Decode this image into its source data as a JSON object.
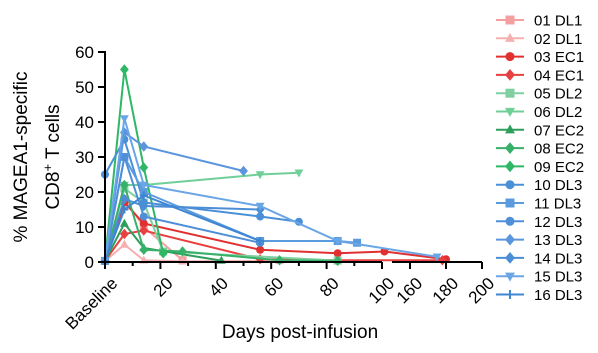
{
  "chart_data": {
    "type": "line",
    "xlabel": "Days post-infusion",
    "ylabel_line1": "% MAGEA1-specific",
    "ylabel_line2_pre": "CD8",
    "ylabel_line2_sup": "+",
    "ylabel_line2_post": " T cells",
    "ylim": [
      0,
      60
    ],
    "y_ticks": [
      0,
      10,
      20,
      30,
      40,
      50,
      60
    ],
    "x_break": {
      "left_segment": [
        0,
        100
      ],
      "right_segment": [
        150,
        200
      ]
    },
    "x_tick_labels": [
      "Baseline",
      "20",
      "40",
      "60",
      "80",
      "100",
      "160",
      "180",
      "200"
    ],
    "legend_placement": "right",
    "series": [
      {
        "name": "01 DL1",
        "color": "#f4a0a0",
        "marker": "square",
        "points": [
          [
            0,
            0.3
          ],
          [
            7,
            18
          ],
          [
            14,
            10
          ],
          [
            28,
            0.5
          ]
        ]
      },
      {
        "name": "02 DL1",
        "color": "#f7b0b0",
        "marker": "triangle-up",
        "points": [
          [
            0,
            0.2
          ],
          [
            7,
            5
          ],
          [
            14,
            0.5
          ],
          [
            28,
            0.2
          ],
          [
            63,
            0.3
          ]
        ]
      },
      {
        "name": "03 EC1",
        "color": "#e03030",
        "marker": "circle",
        "points": [
          [
            0,
            0.3
          ],
          [
            7,
            17
          ],
          [
            14,
            11
          ],
          [
            56,
            3.5
          ],
          [
            84,
            2.5
          ],
          [
            112,
            3
          ],
          [
            180,
            0.8
          ]
        ]
      },
      {
        "name": "04 EC1",
        "color": "#e84040",
        "marker": "diamond",
        "points": [
          [
            0,
            0.3
          ],
          [
            7,
            8
          ],
          [
            14,
            9
          ],
          [
            56,
            0.8
          ],
          [
            84,
            0.5
          ],
          [
            178,
            0.5
          ]
        ]
      },
      {
        "name": "05 DL2",
        "color": "#7fd0a0",
        "marker": "square",
        "points": [
          [
            0,
            0.3
          ],
          [
            7,
            21
          ],
          [
            14,
            17
          ],
          [
            21,
            3
          ],
          [
            84,
            0.4
          ]
        ]
      },
      {
        "name": "06 DL2",
        "color": "#6fcf97",
        "marker": "triangle-down",
        "points": [
          [
            0,
            0.3
          ],
          [
            7,
            22
          ],
          [
            14,
            22
          ],
          [
            56,
            25
          ],
          [
            70,
            25.5
          ]
        ]
      },
      {
        "name": "07 EC2",
        "color": "#2e9e5a",
        "marker": "triangle-up",
        "points": [
          [
            0,
            0.3
          ],
          [
            7,
            11
          ],
          [
            14,
            4
          ],
          [
            42,
            0.4
          ]
        ]
      },
      {
        "name": "08 EC2",
        "color": "#37b06a",
        "marker": "diamond",
        "points": [
          [
            0,
            0.3
          ],
          [
            7,
            22
          ],
          [
            14,
            3.5
          ],
          [
            28,
            3
          ],
          [
            63,
            0.5
          ],
          [
            84,
            0.3
          ]
        ]
      },
      {
        "name": "09 EC2",
        "color": "#2eb866",
        "marker": "diamond",
        "points": [
          [
            0,
            0.3
          ],
          [
            7,
            55
          ],
          [
            14,
            27
          ],
          [
            21,
            2.5
          ]
        ]
      },
      {
        "name": "10 DL3",
        "color": "#4a90d9",
        "marker": "circle",
        "points": [
          [
            0,
            25
          ],
          [
            7,
            35
          ],
          [
            14,
            17
          ],
          [
            56,
            13
          ],
          [
            70,
            11.5
          ]
        ]
      },
      {
        "name": "11 DL3",
        "color": "#5a9be0",
        "marker": "square",
        "points": [
          [
            0,
            0.3
          ],
          [
            7,
            30
          ],
          [
            14,
            20
          ],
          [
            56,
            6
          ],
          [
            84,
            6
          ],
          [
            91,
            5.5
          ]
        ]
      },
      {
        "name": "12 DL3",
        "color": "#4f8fd8",
        "marker": "circle",
        "points": [
          [
            0,
            0.3
          ],
          [
            7,
            30
          ],
          [
            14,
            13
          ],
          [
            56,
            5.5
          ]
        ]
      },
      {
        "name": "13 DL3",
        "color": "#5b95dd",
        "marker": "diamond",
        "points": [
          [
            0,
            0.3
          ],
          [
            7,
            37
          ],
          [
            14,
            33
          ],
          [
            50,
            26
          ]
        ]
      },
      {
        "name": "14 DL3",
        "color": "#4b8ed6",
        "marker": "diamond",
        "points": [
          [
            0,
            0.3
          ],
          [
            7,
            18
          ],
          [
            14,
            16
          ],
          [
            56,
            15
          ]
        ]
      },
      {
        "name": "15 DL3",
        "color": "#6aa5e6",
        "marker": "triangle-down",
        "points": [
          [
            0,
            0.3
          ],
          [
            7,
            41
          ],
          [
            14,
            22
          ],
          [
            56,
            16
          ],
          [
            84,
            6
          ],
          [
            175,
            1.5
          ]
        ]
      },
      {
        "name": "16 DL3",
        "color": "#3f86d2",
        "marker": "cross",
        "points": [
          [
            0,
            0.3
          ],
          [
            7,
            15
          ],
          [
            14,
            19
          ],
          [
            56,
            6
          ]
        ]
      }
    ]
  }
}
